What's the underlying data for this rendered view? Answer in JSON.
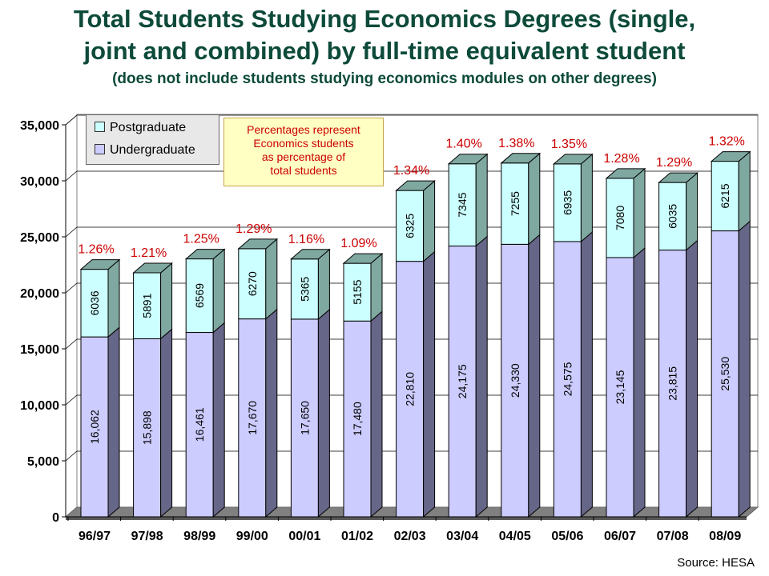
{
  "title_lines": [
    "Total Students Studying Economics Degrees (single,",
    "joint and combined) by full-time equivalent student"
  ],
  "subtitle": "(does not include students studying economics modules on other degrees)",
  "source": "Source: HESA",
  "note_lines": [
    "Percentages represent",
    "Economics students",
    "as percentage of",
    "total students"
  ],
  "legend": [
    {
      "label": "Postgraduate",
      "color": "#ccffff"
    },
    {
      "label": "Undergraduate",
      "color": "#ccccff"
    }
  ],
  "colors": {
    "postgraduate_front": "#ccffff",
    "postgraduate_side": "#7fa8a0",
    "undergraduate_front": "#ccccff",
    "undergraduate_side": "#666688",
    "percent_label": "#cc0000"
  },
  "chart_data": {
    "type": "bar",
    "stacked": true,
    "categories": [
      "96/97",
      "97/98",
      "98/99",
      "99/00",
      "00/01",
      "01/02",
      "02/03",
      "03/04",
      "04/05",
      "05/06",
      "06/07",
      "07/08",
      "08/09"
    ],
    "series": [
      {
        "name": "Undergraduate",
        "values": [
          16062,
          15898,
          16461,
          17670,
          17650,
          17480,
          22810,
          24175,
          24330,
          24575,
          23145,
          23815,
          25530
        ],
        "labels": [
          "16,062",
          "15,898",
          "16,461",
          "17,670",
          "17,650",
          "17,480",
          "22,810",
          "24,175",
          "24,330",
          "24,575",
          "23,145",
          "23,815",
          "25,530"
        ]
      },
      {
        "name": "Postgraduate",
        "values": [
          6036,
          5891,
          6569,
          6270,
          5365,
          5155,
          6325,
          7345,
          7255,
          6935,
          7080,
          6035,
          6215
        ],
        "labels": [
          "6036",
          "5891",
          "6569",
          "6270",
          "5365",
          "5155",
          "6325",
          "7345",
          "7255",
          "6935",
          "7080",
          "6035",
          "6215"
        ]
      }
    ],
    "percentages": [
      "1.26%",
      "1.21%",
      "1.25%",
      "1.29%",
      "1.16%",
      "1.09%",
      "1.34%",
      "1.40%",
      "1.38%",
      "1.35%",
      "1.28%",
      "1.29%",
      "1.32%"
    ],
    "yticks": [
      "0",
      "5,000",
      "10,000",
      "15,000",
      "20,000",
      "25,000",
      "30,000",
      "35,000"
    ],
    "ylim": [
      0,
      35000
    ],
    "grid": true,
    "legend_position": "top-left"
  }
}
